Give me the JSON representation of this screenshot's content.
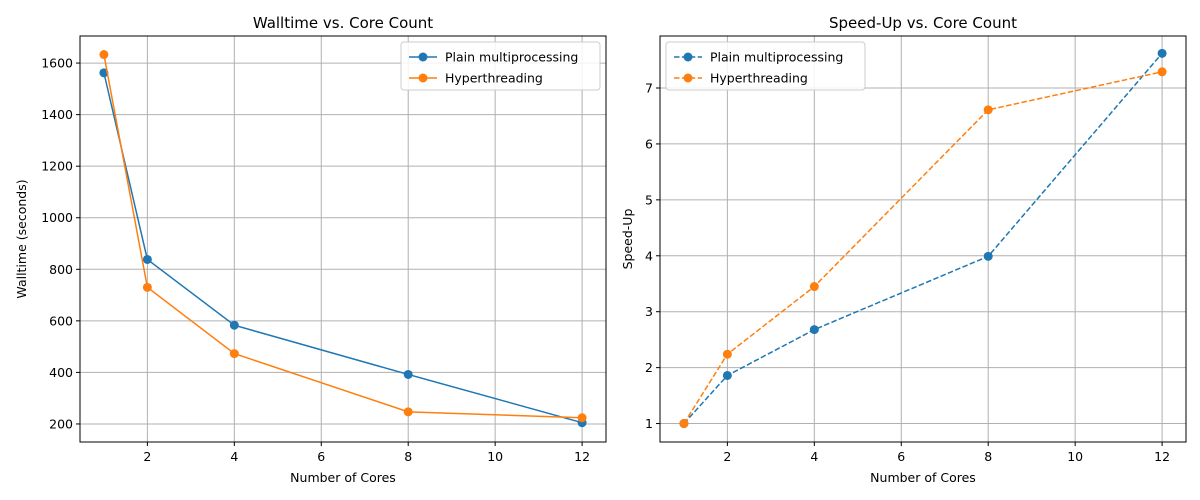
{
  "chart_data": [
    {
      "type": "line",
      "title": "Walltime vs. Core Count",
      "xlabel": "Number of Cores",
      "ylabel": "Walltime (seconds)",
      "x": [
        1,
        2,
        4,
        8,
        12
      ],
      "xlim": [
        0.45,
        12.55
      ],
      "ylim": [
        130,
        1705
      ],
      "xticks": [
        2,
        4,
        6,
        8,
        10,
        12
      ],
      "yticks": [
        200,
        400,
        600,
        800,
        1000,
        1200,
        1400,
        1600
      ],
      "grid": true,
      "legend_position": "top-right",
      "series": [
        {
          "name": "Plain multiprocessing",
          "color": "#1f77b4",
          "dashed": false,
          "values": [
            1562,
            838,
            583,
            392,
            205
          ]
        },
        {
          "name": "Hyperthreading",
          "color": "#ff7f0e",
          "dashed": false,
          "values": [
            1633,
            730,
            473,
            247,
            224
          ]
        }
      ]
    },
    {
      "type": "line",
      "title": "Speed-Up vs. Core Count",
      "xlabel": "Number of Cores",
      "ylabel": "Speed-Up",
      "x": [
        1,
        2,
        4,
        8,
        12
      ],
      "xlim": [
        0.45,
        12.55
      ],
      "ylim": [
        0.67,
        7.93
      ],
      "xticks": [
        2,
        4,
        6,
        8,
        10,
        12
      ],
      "yticks": [
        1,
        2,
        3,
        4,
        5,
        6,
        7
      ],
      "grid": true,
      "legend_position": "top-left",
      "series": [
        {
          "name": "Plain multiprocessing",
          "color": "#1f77b4",
          "dashed": true,
          "values": [
            1.0,
            1.86,
            2.68,
            3.99,
            7.62
          ]
        },
        {
          "name": "Hyperthreading",
          "color": "#ff7f0e",
          "dashed": true,
          "values": [
            1.0,
            2.24,
            3.45,
            6.61,
            7.29
          ]
        }
      ]
    }
  ]
}
